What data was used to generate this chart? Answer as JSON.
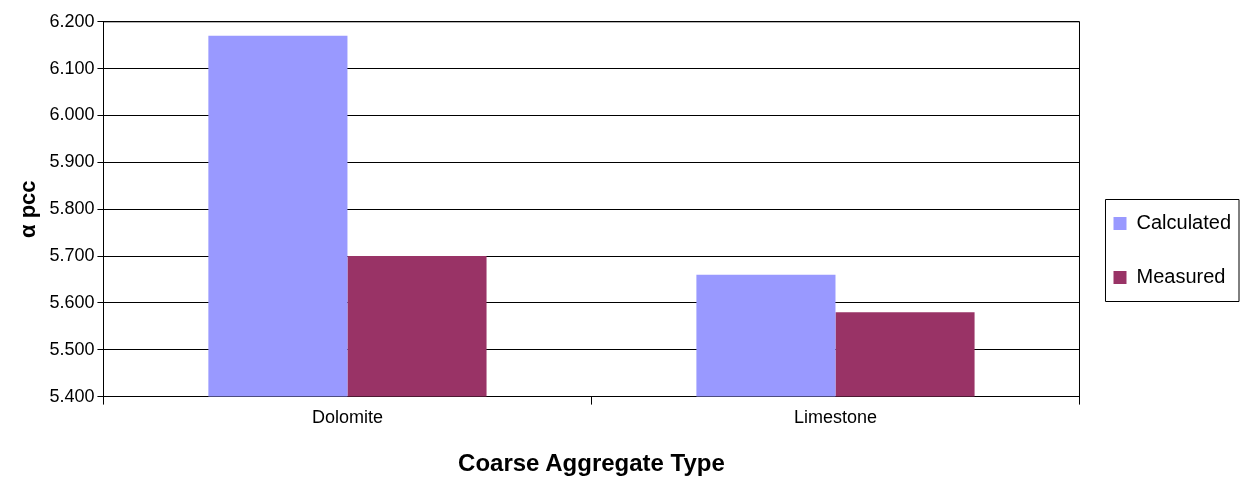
{
  "chart_data": {
    "type": "bar",
    "xlabel": "Coarse Aggregate Type",
    "ylabel": "α pcc",
    "categories": [
      "Dolomite",
      "Limestone"
    ],
    "series": [
      {
        "name": "Calculated",
        "color": "#9999ff",
        "values": [
          6.17,
          5.66
        ]
      },
      {
        "name": "Measured",
        "color": "#993366",
        "values": [
          5.7,
          5.58
        ]
      }
    ],
    "ylim": [
      5.4,
      6.2
    ],
    "yticks": [
      {
        "value": 5.4,
        "label": "5.400"
      },
      {
        "value": 5.5,
        "label": "5.500"
      },
      {
        "value": 5.6,
        "label": "5.600"
      },
      {
        "value": 5.7,
        "label": "5.700"
      },
      {
        "value": 5.8,
        "label": "5.800"
      },
      {
        "value": 5.9,
        "label": "5.900"
      },
      {
        "value": 6.0,
        "label": "6.000"
      },
      {
        "value": 6.1,
        "label": "6.100"
      },
      {
        "value": 6.2,
        "label": "6.200"
      }
    ],
    "grid": "y",
    "legend": "right"
  }
}
